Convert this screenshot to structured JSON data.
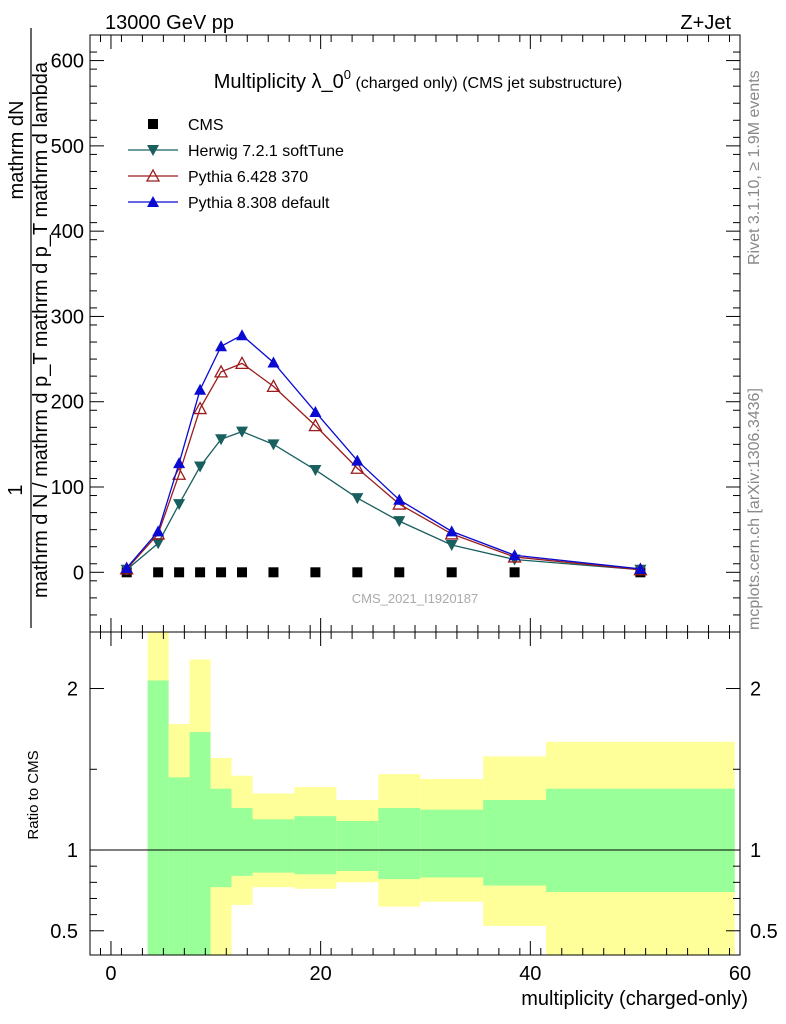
{
  "header": {
    "left": "13000 GeV pp",
    "right": "Z+Jet"
  },
  "side_labels": {
    "rivet": "Rivet 3.1.10, ≥ 1.9M events",
    "mcplots": "mcplots.cern.ch [arXiv:1306.3436]"
  },
  "chart_data": [
    {
      "type": "line",
      "panel": "main",
      "title_main": "Multiplicity λ_0",
      "title_sup": "0",
      "title_tail": " (charged only) (CMS jet substructure)",
      "ylabel_num": "1",
      "ylabel_frac_top": "mathrm dN",
      "ylabel_frac_bottom": "mathrm d N / mathrm d p_T mathrm d p_T mathrm d lambda",
      "watermark": "CMS_2021_I1920187",
      "xlim": [
        -2,
        60
      ],
      "ylim": [
        -70,
        630
      ],
      "yticks": [
        0,
        100,
        200,
        300,
        400,
        500,
        600
      ],
      "ytick_labels": [
        "0",
        "100",
        "200",
        "300",
        "400",
        "500",
        "600"
      ],
      "legend_position": "top-left",
      "series": [
        {
          "name": "CMS",
          "marker": "square",
          "color": "#000000",
          "x": [
            1.5,
            4.5,
            6.5,
            8.5,
            10.5,
            12.5,
            15.5,
            19.5,
            23.5,
            27.5,
            32.5,
            38.5,
            50.5
          ],
          "y": [
            0,
            0,
            0,
            0,
            0,
            0,
            0,
            0,
            0,
            0,
            0,
            0,
            0
          ]
        },
        {
          "name": "Herwig 7.2.1 softTune",
          "marker": "triangle-down",
          "color": "#1a5f5f",
          "x": [
            1.5,
            4.5,
            6.5,
            8.5,
            10.5,
            12.5,
            15.5,
            19.5,
            23.5,
            27.5,
            32.5,
            38.5,
            50.5
          ],
          "y": [
            3,
            34,
            80,
            124,
            156,
            165,
            150,
            120,
            87,
            60,
            32,
            15,
            3
          ]
        },
        {
          "name": "Pythia 6.428 370",
          "marker": "triangle-open",
          "color": "#9b1c1c",
          "x": [
            1.5,
            4.5,
            6.5,
            8.5,
            10.5,
            12.5,
            15.5,
            19.5,
            23.5,
            27.5,
            32.5,
            38.5,
            50.5
          ],
          "y": [
            4,
            45,
            115,
            192,
            235,
            245,
            218,
            172,
            122,
            80,
            45,
            18,
            3
          ]
        },
        {
          "name": "Pythia 8.308 default",
          "marker": "triangle-up",
          "color": "#0a0ad2",
          "x": [
            1.5,
            4.5,
            6.5,
            8.5,
            10.5,
            12.5,
            15.5,
            19.5,
            23.5,
            27.5,
            32.5,
            38.5,
            50.5
          ],
          "y": [
            5,
            48,
            128,
            214,
            265,
            278,
            246,
            188,
            131,
            85,
            48,
            20,
            4
          ]
        }
      ]
    },
    {
      "type": "area",
      "panel": "ratio",
      "ylabel": "Ratio to CMS",
      "xlabel": "multiplicity (charged-only)",
      "xlim": [
        -2,
        60
      ],
      "ylim": [
        0.35,
        2.35
      ],
      "xticks": [
        0,
        20,
        40,
        60
      ],
      "xtick_labels": [
        "0",
        "20",
        "40",
        "60"
      ],
      "yticks": [
        0.5,
        1,
        2
      ],
      "ytick_labels": [
        "0.5",
        "1",
        "2"
      ],
      "reference_line": 1,
      "bins": [
        {
          "x0": 3.5,
          "x1": 5.5,
          "stat_lo": 0.35,
          "stat_hi": 2.05,
          "tot_lo": 0.35,
          "tot_hi": 2.35
        },
        {
          "x0": 5.5,
          "x1": 7.5,
          "stat_lo": 0.35,
          "stat_hi": 1.45,
          "tot_lo": 0.68,
          "tot_hi": 1.78
        },
        {
          "x0": 7.5,
          "x1": 9.5,
          "stat_lo": 0.35,
          "stat_hi": 1.73,
          "tot_lo": 0.35,
          "tot_hi": 2.18
        },
        {
          "x0": 9.5,
          "x1": 11.5,
          "stat_lo": 0.77,
          "stat_hi": 1.38,
          "tot_lo": 0.35,
          "tot_hi": 1.57
        },
        {
          "x0": 11.5,
          "x1": 13.5,
          "stat_lo": 0.84,
          "stat_hi": 1.26,
          "tot_lo": 0.66,
          "tot_hi": 1.46
        },
        {
          "x0": 13.5,
          "x1": 17.5,
          "stat_lo": 0.86,
          "stat_hi": 1.19,
          "tot_lo": 0.77,
          "tot_hi": 1.35
        },
        {
          "x0": 17.5,
          "x1": 21.5,
          "stat_lo": 0.85,
          "stat_hi": 1.21,
          "tot_lo": 0.76,
          "tot_hi": 1.39
        },
        {
          "x0": 21.5,
          "x1": 25.5,
          "stat_lo": 0.87,
          "stat_hi": 1.18,
          "tot_lo": 0.8,
          "tot_hi": 1.31
        },
        {
          "x0": 25.5,
          "x1": 29.5,
          "stat_lo": 0.82,
          "stat_hi": 1.26,
          "tot_lo": 0.65,
          "tot_hi": 1.47
        },
        {
          "x0": 29.5,
          "x1": 35.5,
          "stat_lo": 0.83,
          "stat_hi": 1.25,
          "tot_lo": 0.68,
          "tot_hi": 1.44
        },
        {
          "x0": 35.5,
          "x1": 41.5,
          "stat_lo": 0.78,
          "stat_hi": 1.31,
          "tot_lo": 0.53,
          "tot_hi": 1.58
        },
        {
          "x0": 41.5,
          "x1": 59.5,
          "stat_lo": 0.74,
          "stat_hi": 1.38,
          "tot_lo": 0.35,
          "tot_hi": 1.67
        }
      ],
      "colors": {
        "stat": "#99ff99",
        "total": "#ffff99"
      }
    }
  ]
}
